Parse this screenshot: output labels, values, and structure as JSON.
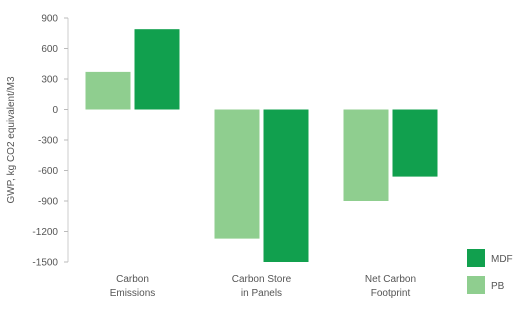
{
  "chart_data": {
    "type": "bar",
    "title": "",
    "ylabel": "GWP, kg CO2 equivalent/M3",
    "xlabel": "",
    "categories": [
      [
        "Carbon",
        "Emissions"
      ],
      [
        "Carbon Store",
        "in Panels"
      ],
      [
        "Net Carbon",
        "Footprint"
      ]
    ],
    "series": [
      {
        "name": "PB",
        "color": "#8fce8f",
        "values": [
          370,
          -1270,
          -900
        ]
      },
      {
        "name": "MDF",
        "color": "#11a04e",
        "values": [
          790,
          -1500,
          -660
        ]
      }
    ],
    "ylim": [
      -1500,
      900
    ],
    "yticks": [
      900,
      600,
      300,
      0,
      -300,
      -600,
      -900,
      -1200,
      -1500
    ],
    "ytick_labels": [
      "900",
      "600",
      "300",
      "0",
      "-300",
      "-600",
      "-900",
      "-1200",
      "-1500"
    ],
    "grid": false,
    "legend_position": "right",
    "legend_order": [
      "MDF",
      "PB"
    ]
  }
}
